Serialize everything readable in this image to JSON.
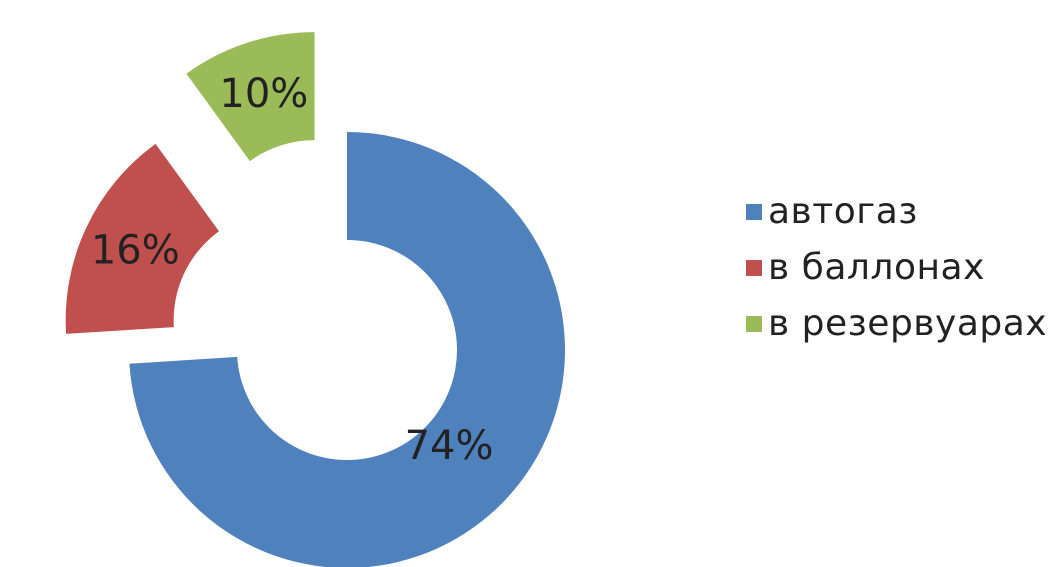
{
  "chart_data": {
    "type": "pie",
    "variant": "exploded-doughnut",
    "categories": [
      "автогаз",
      "в баллонах",
      "в резервуарах"
    ],
    "values": [
      74,
      16,
      10
    ],
    "labels": [
      "74%",
      "16%",
      "10%"
    ],
    "colors": [
      "#4F81BD",
      "#C0504D",
      "#9BBB59"
    ],
    "legend": "right"
  }
}
